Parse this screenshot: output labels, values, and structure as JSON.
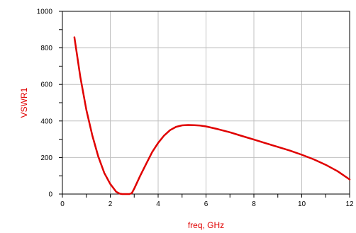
{
  "chart_data": {
    "type": "line",
    "title": "",
    "xlabel": "freq, GHz",
    "ylabel": "VSWR1",
    "xlim": [
      0,
      12
    ],
    "ylim": [
      0,
      1000
    ],
    "x_ticks": [
      0,
      2,
      4,
      6,
      8,
      10,
      12
    ],
    "y_ticks": [
      0,
      200,
      400,
      600,
      800,
      1000
    ],
    "x_minor_step": 1,
    "y_minor_step": 100,
    "grid": true,
    "colors": {
      "series": "#e00000",
      "label": "#e00000",
      "grid": "#c0c0c0",
      "frame": "#000000"
    },
    "series": [
      {
        "x": [
          0.5,
          0.75,
          1.0,
          1.25,
          1.5,
          1.75,
          2.0,
          2.25,
          2.4,
          2.5,
          2.6,
          2.7,
          2.8,
          2.9,
          3.0,
          3.25,
          3.5,
          3.75,
          4.0,
          4.25,
          4.5,
          4.75,
          5.0,
          5.25,
          5.5,
          5.75,
          6.0,
          6.5,
          7.0,
          7.5,
          8.0,
          8.5,
          9.0,
          9.5,
          10.0,
          10.5,
          11.0,
          11.5,
          12.0
        ],
        "values": [
          858,
          640,
          460,
          320,
          205,
          115,
          55,
          12,
          2,
          0,
          0,
          0,
          0,
          5,
          30,
          100,
          165,
          230,
          280,
          320,
          350,
          368,
          376,
          378,
          377,
          375,
          370,
          355,
          338,
          318,
          298,
          278,
          258,
          238,
          215,
          190,
          160,
          125,
          80
        ]
      }
    ]
  }
}
